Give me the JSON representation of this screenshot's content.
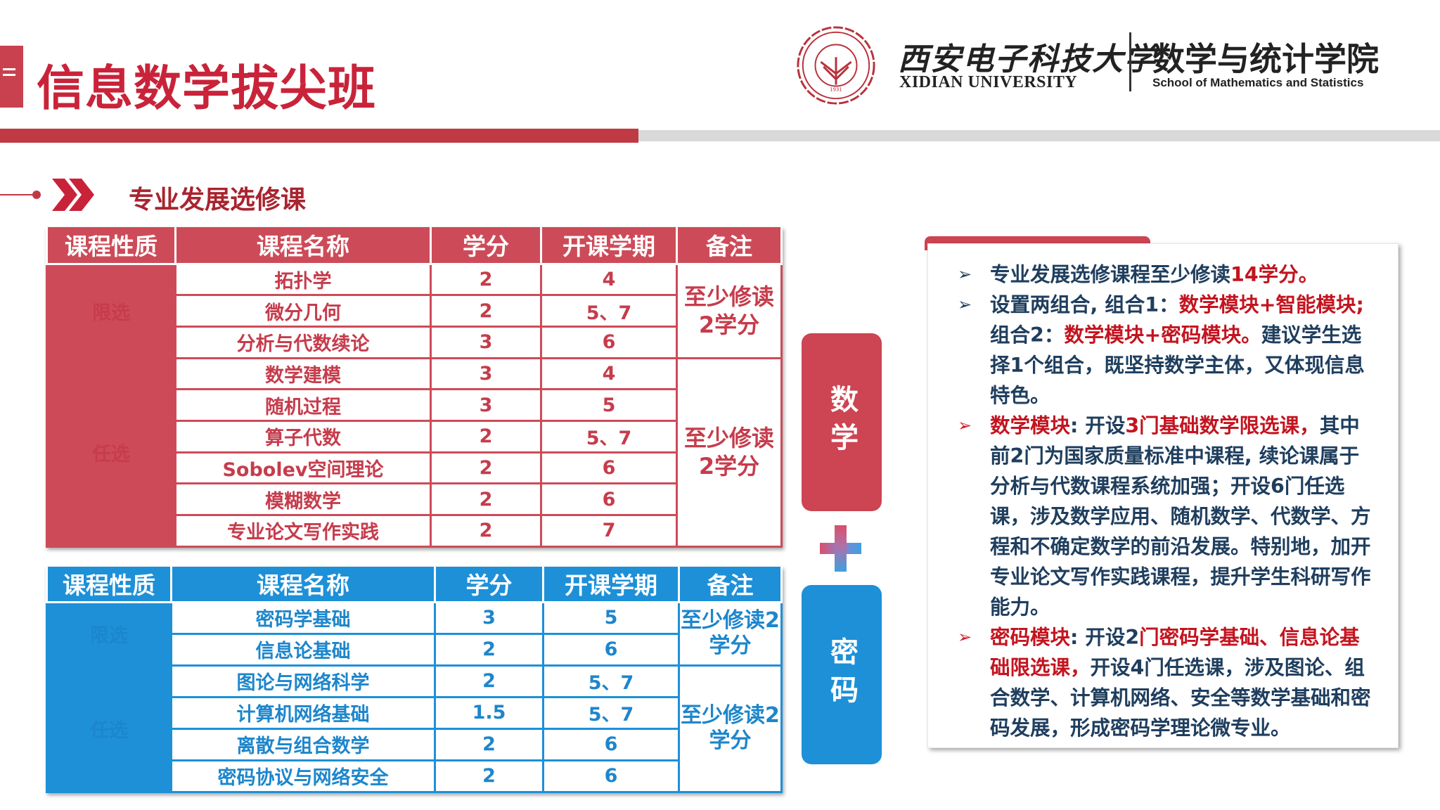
{
  "header": {
    "title": "信息数学拔尖班",
    "university_cn": "西安电子科技大学",
    "university_en": "XIDIAN UNIVERSITY",
    "logo_text": "西安电子科技大学 XIDIAN UNIVERSITY 1931",
    "school_cn": "数学与统计学院",
    "school_en": "School of Mathematics and Statistics"
  },
  "section": {
    "title": "专业发展选修课"
  },
  "colors": {
    "red": "#cd4b58",
    "blue": "#1d90d8",
    "text_dark": "#1f3e5e",
    "text_red": "#c3141f"
  },
  "math_table": {
    "headers": [
      "课程性质",
      "课程名称",
      "学分",
      "开课学期",
      "备注"
    ],
    "groups": [
      {
        "category": "限选",
        "note": "至少修读2学分",
        "rows": [
          {
            "name": "拓扑学",
            "credit": "2",
            "term": "4"
          },
          {
            "name": "微分几何",
            "credit": "2",
            "term": "5、7"
          },
          {
            "name": "分析与代数续论",
            "credit": "3",
            "term": "6"
          }
        ]
      },
      {
        "category": "任选",
        "note": "至少修读2学分",
        "rows": [
          {
            "name": "数学建模",
            "credit": "3",
            "term": "4"
          },
          {
            "name": "随机过程",
            "credit": "3",
            "term": "5"
          },
          {
            "name": "算子代数",
            "credit": "2",
            "term": "5、7"
          },
          {
            "name": "Sobolev空间理论",
            "credit": "2",
            "term": "6"
          },
          {
            "name": "模糊数学",
            "credit": "2",
            "term": "6"
          },
          {
            "name": "专业论文写作实践",
            "credit": "2",
            "term": "7"
          }
        ]
      }
    ]
  },
  "crypto_table": {
    "headers": [
      "课程性质",
      "课程名称",
      "学分",
      "开课学期",
      "备注"
    ],
    "groups": [
      {
        "category": "限选",
        "note": "至少修读2学分",
        "rows": [
          {
            "name": "密码学基础",
            "credit": "3",
            "term": "5"
          },
          {
            "name": "信息论基础",
            "credit": "2",
            "term": "6"
          }
        ]
      },
      {
        "category": "任选",
        "note": "至少修读2学分",
        "rows": [
          {
            "name": "图论与网络科学",
            "credit": "2",
            "term": "5、7"
          },
          {
            "name": "计算机网络基础",
            "credit": "1.5",
            "term": "5、7"
          },
          {
            "name": "离散与组合数学",
            "credit": "2",
            "term": "6"
          },
          {
            "name": "密码协议与网络安全",
            "credit": "2",
            "term": "6"
          }
        ]
      }
    ]
  },
  "modules": {
    "math": "数学",
    "plus": "+",
    "crypto": "密码"
  },
  "panel": {
    "bullets": [
      {
        "bullet_red": false,
        "segments": [
          {
            "text": "专业发展选修课程至少修读",
            "red": false
          },
          {
            "text": "14学分。",
            "red": true
          }
        ]
      },
      {
        "bullet_red": false,
        "segments": [
          {
            "text": "设置两组合, 组合1：",
            "red": false
          },
          {
            "text": "数学模块+智能模块;",
            "red": true
          },
          {
            "text": "组合2：",
            "red": false
          },
          {
            "text": "数学模块+密码模块。",
            "red": true
          },
          {
            "text": "建议学生选择1个组合，既坚持数学主体，又体现信息特色。",
            "red": false
          }
        ]
      },
      {
        "bullet_red": true,
        "segments": [
          {
            "text": "数学模块",
            "red": true
          },
          {
            "text": ": 开设",
            "red": false
          },
          {
            "text": "3门基础数学限选课，",
            "red": true
          },
          {
            "text": "其中前2门为国家质量标准中课程, 续论课属于分析与代数课程系统加强；开设6门任选课，涉及数学应用、随机数学、代数学、方程和不确定数学的前沿发展。特别地，加开专业论文写作实践课程，提升学生科研写作能力。",
            "red": false
          }
        ]
      },
      {
        "bullet_red": true,
        "segments": [
          {
            "text": "密码模块",
            "red": true
          },
          {
            "text": ": 开设2",
            "red": false
          },
          {
            "text": "门密码学基础、信息论基础限选课，",
            "red": true
          },
          {
            "text": "开设4门任选课，涉及图论、组合数学、计算机网络、安全等数学基础和密码发展，形成密码学理论微专业。",
            "red": false
          }
        ]
      }
    ]
  }
}
